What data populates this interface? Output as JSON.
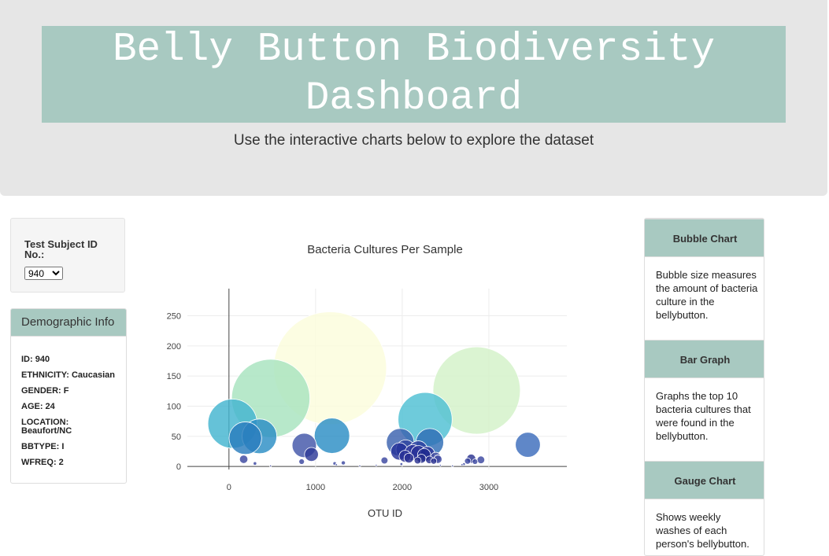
{
  "header": {
    "title_line1": "Belly Button Biodiversity",
    "title_line2": "Dashboard",
    "subtitle": "Use the interactive charts below to explore the dataset"
  },
  "selector": {
    "label": "Test Subject ID No.:",
    "selected": "940"
  },
  "demographics": {
    "heading": "Demographic Info",
    "items": [
      "ID: 940",
      "ETHNICITY: Caucasian",
      "GENDER: F",
      "AGE: 24",
      "LOCATION: Beaufort/NC",
      "BBTYPE: I",
      "WFREQ: 2"
    ]
  },
  "info_panel": [
    {
      "heading": "Bubble Chart",
      "body": "Bubble size measures the amount of bacteria culture in the bellybutton."
    },
    {
      "heading": "Bar Graph",
      "body": "Graphs the top 10 bacteria cultures that were found in the bellybutton."
    },
    {
      "heading": "Gauge Chart",
      "body": "Shows weekly washes of each person's bellybutton."
    }
  ],
  "chart_data": {
    "type": "scatter",
    "title": "Bacteria Cultures Per Sample",
    "xlabel": "OTU ID",
    "ylabel": "",
    "xlim": [
      -480,
      3900
    ],
    "ylim": [
      -5,
      295
    ],
    "xticks": [
      0,
      1000,
      2000,
      3000
    ],
    "yticks": [
      0,
      50,
      100,
      150,
      200,
      250
    ],
    "grid": true,
    "colorscale": "YlGnBu",
    "note": "marker size proportional to sample value",
    "points": [
      {
        "x": 1167,
        "y": 163,
        "size": 163,
        "color": "#fbfddc"
      },
      {
        "x": 2859,
        "y": 126,
        "size": 126,
        "color": "#d3f2c8"
      },
      {
        "x": 482,
        "y": 113,
        "size": 113,
        "color": "#a7e3be"
      },
      {
        "x": 2264,
        "y": 78,
        "size": 78,
        "color": "#4ec0d3"
      },
      {
        "x": 41,
        "y": 71,
        "size": 71,
        "color": "#43b5d0"
      },
      {
        "x": 1189,
        "y": 51,
        "size": 51,
        "color": "#2b8ec4"
      },
      {
        "x": 352,
        "y": 50,
        "size": 50,
        "color": "#2b8ec4"
      },
      {
        "x": 189,
        "y": 47,
        "size": 47,
        "color": "#2a7cbd"
      },
      {
        "x": 2318,
        "y": 40,
        "size": 40,
        "color": "#2e6db4"
      },
      {
        "x": 1977,
        "y": 40,
        "size": 40,
        "color": "#3a62ae"
      },
      {
        "x": 3450,
        "y": 36,
        "size": 36,
        "color": "#3c6cbc"
      },
      {
        "x": 869,
        "y": 35,
        "size": 35,
        "color": "#4256a8"
      },
      {
        "x": 2040,
        "y": 28,
        "size": 28,
        "color": "#2f44a0"
      },
      {
        "x": 2186,
        "y": 27,
        "size": 27,
        "color": "#2f3fa0"
      },
      {
        "x": 1968,
        "y": 25,
        "size": 25,
        "color": "#25329a"
      },
      {
        "x": 2122,
        "y": 23,
        "size": 23,
        "color": "#2c359b"
      },
      {
        "x": 2188,
        "y": 22,
        "size": 22,
        "color": "#2a3298"
      },
      {
        "x": 2291,
        "y": 21,
        "size": 21,
        "color": "#2b3297"
      },
      {
        "x": 952,
        "y": 20,
        "size": 20,
        "color": "#2e3a98"
      },
      {
        "x": 2252,
        "y": 19,
        "size": 19,
        "color": "#1d2a8f"
      },
      {
        "x": 2032,
        "y": 17,
        "size": 17,
        "color": "#2b3296"
      },
      {
        "x": 2386,
        "y": 15,
        "size": 15,
        "color": "#4753a4"
      },
      {
        "x": 2077,
        "y": 14,
        "size": 14,
        "color": "#2a2f92"
      },
      {
        "x": 2222,
        "y": 13,
        "size": 13,
        "color": "#28318f"
      },
      {
        "x": 2796,
        "y": 13,
        "size": 13,
        "color": "#2b3390"
      },
      {
        "x": 2411,
        "y": 12,
        "size": 12,
        "color": "#3a46a0"
      },
      {
        "x": 170,
        "y": 12,
        "size": 12,
        "color": "#3b47a0"
      },
      {
        "x": 2314,
        "y": 11,
        "size": 11,
        "color": "#2b3291"
      },
      {
        "x": 2908,
        "y": 11,
        "size": 11,
        "color": "#3a47a0"
      },
      {
        "x": 2178,
        "y": 10,
        "size": 10,
        "color": "#2b3290"
      },
      {
        "x": 1795,
        "y": 10,
        "size": 10,
        "color": "#3a47a0"
      },
      {
        "x": 2363,
        "y": 9,
        "size": 9,
        "color": "#2b3290"
      },
      {
        "x": 2755,
        "y": 9,
        "size": 9,
        "color": "#3a47a0"
      },
      {
        "x": 839,
        "y": 8,
        "size": 8,
        "color": "#3a47a0"
      },
      {
        "x": 2840,
        "y": 8,
        "size": 8,
        "color": "#3a47a0"
      },
      {
        "x": 1320,
        "y": 6,
        "size": 6,
        "color": "#3a47a0"
      },
      {
        "x": 300,
        "y": 5,
        "size": 5,
        "color": "#3a47a0"
      },
      {
        "x": 1220,
        "y": 5,
        "size": 5,
        "color": "#3a47a0"
      },
      {
        "x": 1990,
        "y": 4,
        "size": 4,
        "color": "#3a47a0"
      },
      {
        "x": 2712,
        "y": 4,
        "size": 4,
        "color": "#3a47a0"
      },
      {
        "x": 1240,
        "y": 3,
        "size": 3,
        "color": "#3a47a0"
      },
      {
        "x": 2690,
        "y": 3,
        "size": 3,
        "color": "#3a47a0"
      },
      {
        "x": 1700,
        "y": 2,
        "size": 2,
        "color": "#3a47a0"
      },
      {
        "x": 2440,
        "y": 2,
        "size": 2,
        "color": "#3a47a0"
      },
      {
        "x": 480,
        "y": 1,
        "size": 1,
        "color": "#3a47a0"
      },
      {
        "x": 1510,
        "y": 1,
        "size": 1,
        "color": "#3a47a0"
      },
      {
        "x": 2580,
        "y": 1,
        "size": 1,
        "color": "#3a47a0"
      }
    ]
  }
}
